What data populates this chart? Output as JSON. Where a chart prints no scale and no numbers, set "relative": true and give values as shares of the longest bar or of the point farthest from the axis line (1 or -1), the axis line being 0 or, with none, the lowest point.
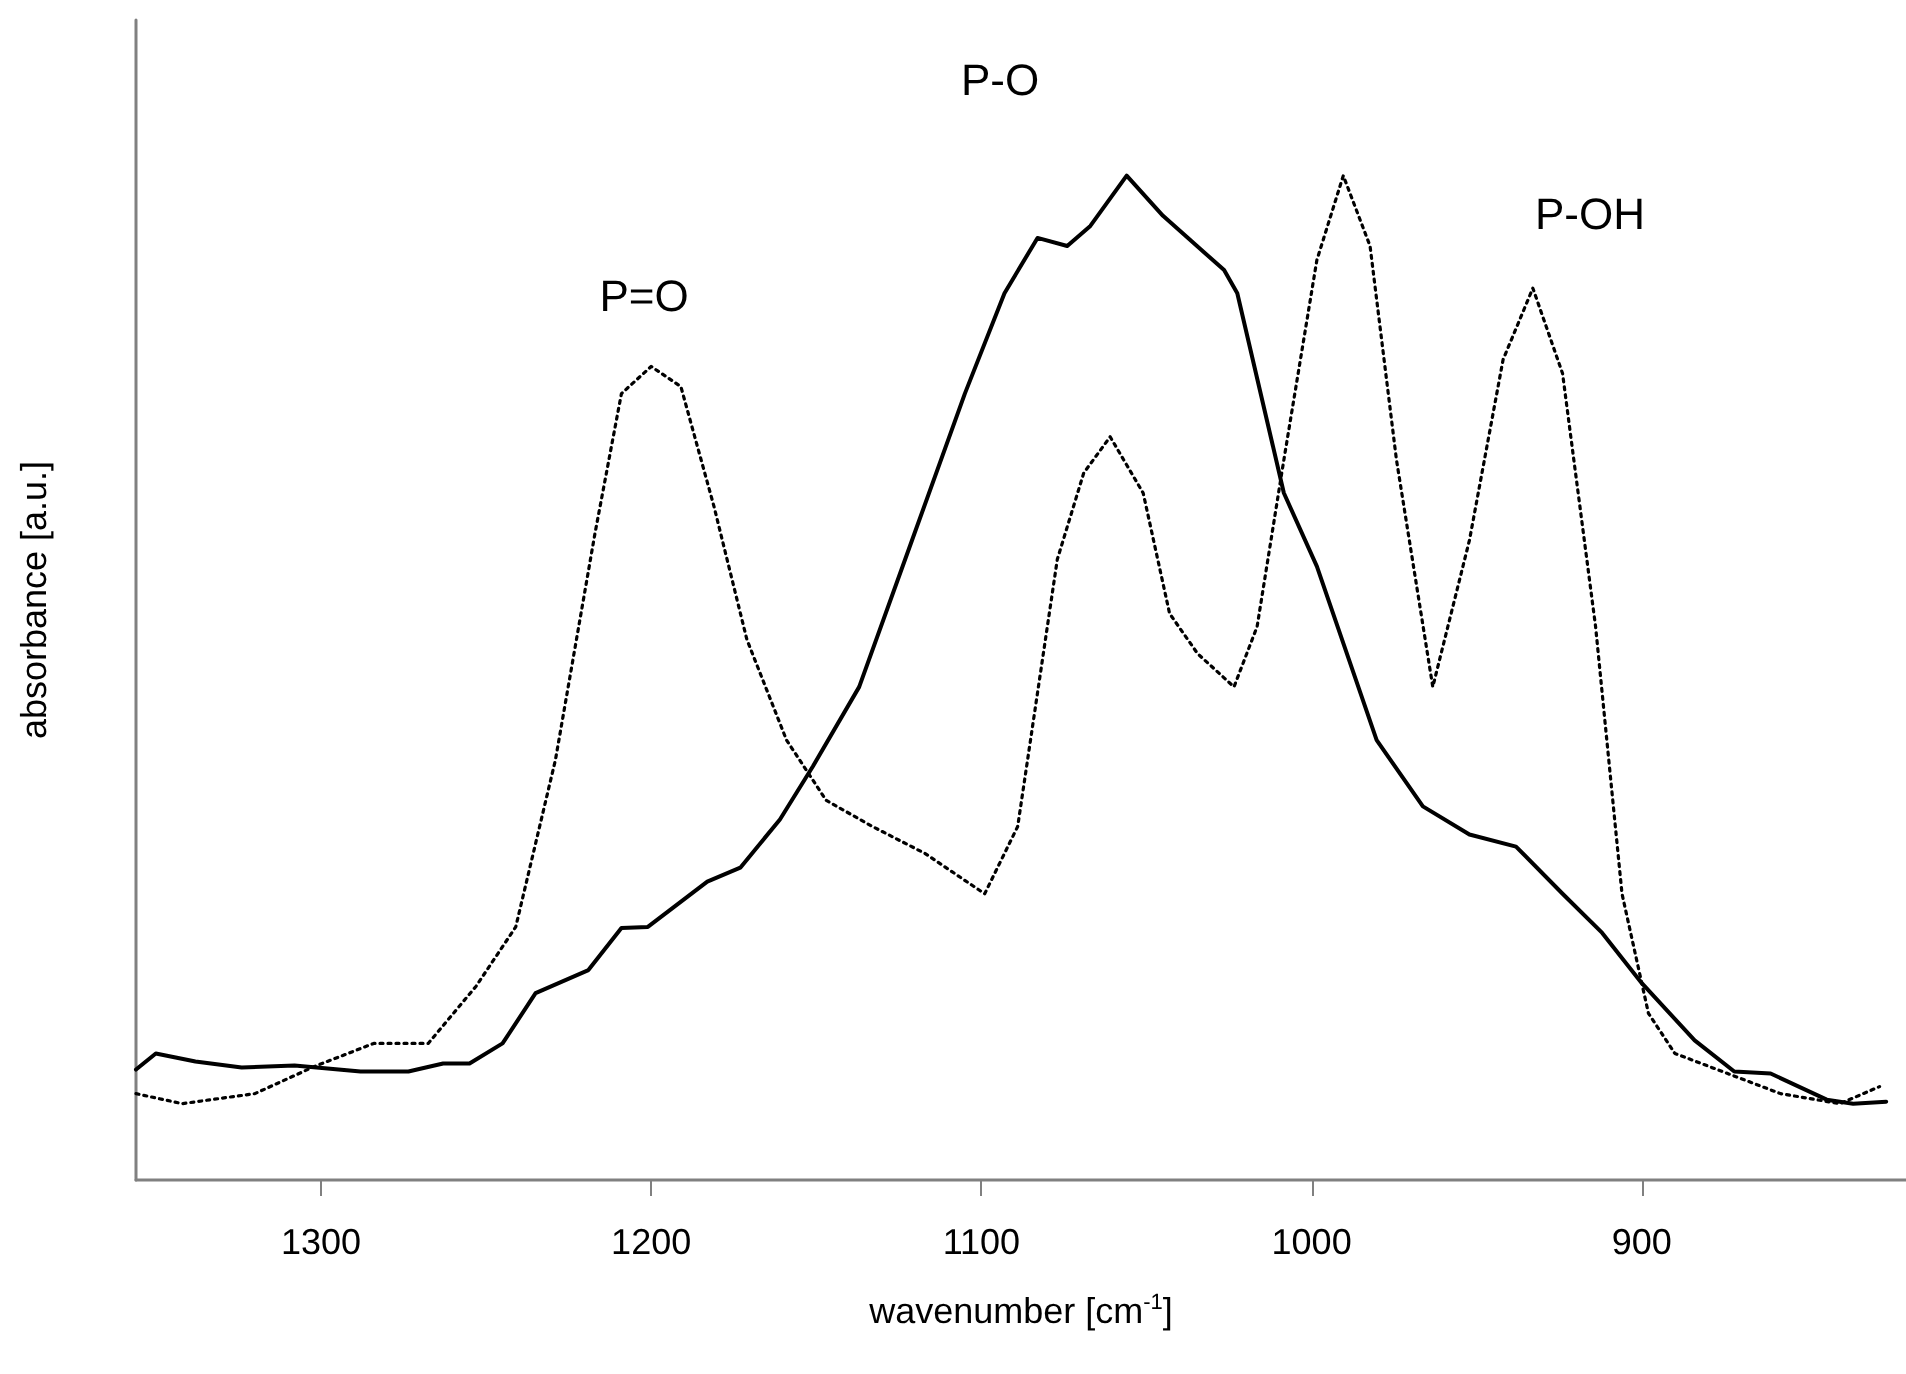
{
  "chart_data": {
    "type": "line",
    "relative": true,
    "xlabel": "wavenumber [cm$^{-1}$]",
    "ylabel": "absorbance [a.u.]",
    "xlim": [
      1356,
      820
    ],
    "xticks": [
      1300,
      1200,
      1100,
      1000,
      900
    ],
    "grid": false,
    "marker": "none",
    "annotations": [
      "P=O",
      "P-O",
      "P-OH"
    ],
    "series": [
      {
        "color": "#000000",
        "line_style": "solid",
        "x": [
          1356,
          1350,
          1338,
          1324,
          1308,
          1288,
          1273.5,
          1263,
          1255,
          1245,
          1235,
          1219,
          1209,
          1201,
          1183,
          1173,
          1161,
          1151,
          1137,
          1121,
          1105,
          1093,
          1083,
          1074,
          1067,
          1056,
          1045,
          1026.5,
          1022.5,
          1008.4,
          998.4,
          980.3,
          966.3,
          952.2,
          938.1,
          924,
          912,
          900,
          884,
          872,
          861,
          844,
          836,
          826
        ],
        "values": [
          0.11,
          0.126,
          0.118,
          0.112,
          0.114,
          0.108,
          0.108,
          0.116,
          0.116,
          0.136,
          0.186,
          0.209,
          0.251,
          0.252,
          0.297,
          0.311,
          0.359,
          0.412,
          0.491,
          0.637,
          0.783,
          0.883,
          0.938,
          0.93,
          0.95,
          1.0,
          0.96,
          0.906,
          0.883,
          0.684,
          0.611,
          0.438,
          0.372,
          0.344,
          0.332,
          0.285,
          0.246,
          0.196,
          0.139,
          0.108,
          0.106,
          0.08,
          0.076,
          0.078
        ]
      },
      {
        "color": "#000000",
        "line_style": "dotted",
        "x": [
          1356,
          1342,
          1320,
          1302,
          1284,
          1267.5,
          1253,
          1241,
          1229,
          1217,
          1209,
          1200,
          1191,
          1181,
          1171,
          1159,
          1147,
          1133,
          1117,
          1099,
          1089,
          1077,
          1069,
          1061,
          1051,
          1043,
          1034.5,
          1023.5,
          1016.5,
          1008.4,
          998.4,
          990.4,
          982.3,
          974.3,
          963.3,
          952.2,
          942,
          933,
          924,
          914,
          906,
          898,
          890,
          874,
          858,
          840,
          828
        ],
        "values": [
          0.086,
          0.076,
          0.086,
          0.113,
          0.136,
          0.136,
          0.193,
          0.252,
          0.418,
          0.644,
          0.783,
          0.81,
          0.79,
          0.671,
          0.538,
          0.438,
          0.378,
          0.352,
          0.325,
          0.285,
          0.352,
          0.618,
          0.704,
          0.74,
          0.684,
          0.564,
          0.524,
          0.491,
          0.551,
          0.717,
          0.916,
          1.0,
          0.93,
          0.717,
          0.491,
          0.637,
          0.817,
          0.888,
          0.803,
          0.551,
          0.285,
          0.166,
          0.126,
          0.106,
          0.086,
          0.076,
          0.093
        ]
      }
    ]
  }
}
